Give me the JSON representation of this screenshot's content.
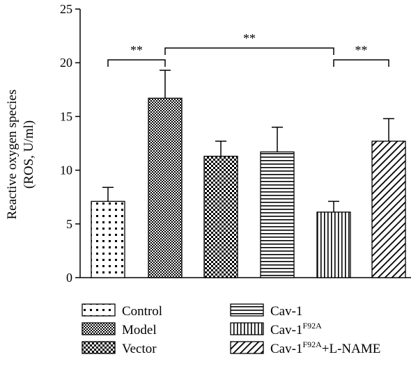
{
  "chart_data": {
    "type": "bar",
    "ylabel_line1": "Reactive oxygen species",
    "ylabel_line2": "(ROS, U/ml)",
    "ylim": [
      0,
      25
    ],
    "yticks": [
      "0",
      "5",
      "10",
      "15",
      "20",
      "25"
    ],
    "categories": [
      "Control",
      "Model",
      "Vector",
      "Cav-1",
      "Cav-1F92A",
      "Cav-1F92A+L-NAME"
    ],
    "values": [
      7.1,
      16.7,
      11.3,
      11.7,
      6.1,
      12.7
    ],
    "errors": [
      1.3,
      2.6,
      1.4,
      2.3,
      1.0,
      2.1
    ],
    "patterns": [
      "dots",
      "dense-check",
      "checker",
      "horizontal",
      "vertical",
      "diagonal"
    ],
    "legend": [
      {
        "text": "Control",
        "sup": "",
        "suffix": ""
      },
      {
        "text": "Model",
        "sup": "",
        "suffix": ""
      },
      {
        "text": "Vector",
        "sup": "",
        "suffix": ""
      },
      {
        "text": "Cav-1",
        "sup": "",
        "suffix": ""
      },
      {
        "text": "Cav-1",
        "sup": "F92A",
        "suffix": ""
      },
      {
        "text": "Cav-1",
        "sup": "F92A",
        "suffix": "+L-NAME"
      }
    ],
    "significance": [
      {
        "from": 0,
        "to": 1,
        "label": "**"
      },
      {
        "from": 1,
        "to": 4,
        "label": "**"
      },
      {
        "from": 4,
        "to": 5,
        "label": "**"
      }
    ],
    "grid": false,
    "legend_position": "bottom"
  }
}
